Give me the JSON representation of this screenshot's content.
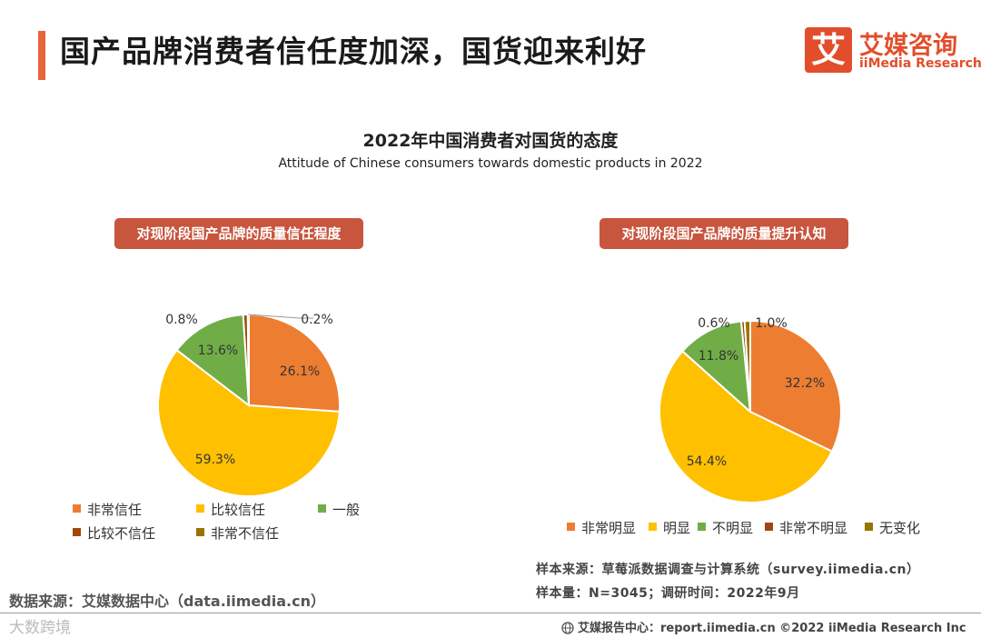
{
  "header": {
    "title": "国产品牌消费者信任度加深，国货迎来利好",
    "logo_glyph": "艾",
    "logo_cn": "艾媒咨询",
    "logo_en": "iiMedia Research",
    "accent_color": "#e8643a"
  },
  "chart_title": "2022年中国消费者对国货的态度",
  "chart_subtitle": "Attitude of Chinese consumers towards domestic products in 2022",
  "chart_data": [
    {
      "type": "pie",
      "title": "对现阶段国产品牌的质量信任程度",
      "slices": [
        {
          "label": "非常信任",
          "value": 26.1,
          "display": "26.1%",
          "color": "#ed7d31"
        },
        {
          "label": "比较信任",
          "value": 59.3,
          "display": "59.3%",
          "color": "#ffc000"
        },
        {
          "label": "一般",
          "value": 13.6,
          "display": "13.6%",
          "color": "#70ad47"
        },
        {
          "label": "比较不信任",
          "value": 0.8,
          "display": "0.8%",
          "color": "#9e480e"
        },
        {
          "label": "非常不信任",
          "value": 0.2,
          "display": "0.2%",
          "color": "#997300"
        }
      ]
    },
    {
      "type": "pie",
      "title": "对现阶段国产品牌的质量提升认知",
      "slices": [
        {
          "label": "非常明显",
          "value": 32.2,
          "display": "32.2%",
          "color": "#ed7d31"
        },
        {
          "label": "明显",
          "value": 54.4,
          "display": "54.4%",
          "color": "#ffc000"
        },
        {
          "label": "不明显",
          "value": 11.8,
          "display": "11.8%",
          "color": "#70ad47"
        },
        {
          "label": "非常不明显",
          "value": 0.6,
          "display": "0.6%",
          "color": "#9e480e"
        },
        {
          "label": "无变化",
          "value": 1.0,
          "display": "1.0%",
          "color": "#997300"
        }
      ]
    }
  ],
  "source_left": "数据来源：艾媒数据中心（data.iimedia.cn）",
  "sample_source": "样本来源：草莓派数据调查与计算系统（survey.iimedia.cn）",
  "sample_size": "样本量：N=3045；调研时间：2022年9月",
  "footer": "艾媒报告中心：report.iimedia.cn  ©2022  iiMedia Research  Inc",
  "watermark": "大数跨境"
}
